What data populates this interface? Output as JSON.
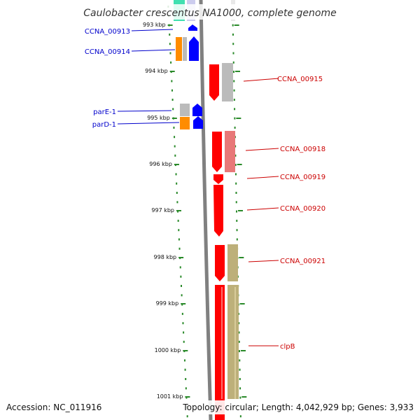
{
  "title": "Caulobacter crescentus NA1000, complete genome",
  "accession": "Accession: NC_011916",
  "summary": "Topology: circular; Length: 4,042,929 bp; Genes: 3,933",
  "colors": {
    "forward": "#ff0000",
    "forward_light": "#e87878",
    "reverse": "#0000ff",
    "gray": "#bbbbbb",
    "orange": "#ff8c00",
    "khaki": "#bdb07a",
    "teal": "#40e0b0",
    "tick": "#2a8a2a",
    "backbone": "#808080"
  },
  "ticks": [
    {
      "label": "993 kbp"
    },
    {
      "label": "994 kbp"
    },
    {
      "label": "995 kbp"
    },
    {
      "label": "996 kbp"
    },
    {
      "label": "997 kbp"
    },
    {
      "label": "998 kbp"
    },
    {
      "label": "999 kbp"
    },
    {
      "label": "1000 kbp"
    },
    {
      "label": "1001 kbp"
    }
  ],
  "left_labels": [
    {
      "label": "CCNA_00913"
    },
    {
      "label": "CCNA_00914"
    },
    {
      "label": "parE-1"
    },
    {
      "label": "parD-1"
    }
  ],
  "right_labels": [
    {
      "label": "CCNA_00915"
    },
    {
      "label": "CCNA_00918"
    },
    {
      "label": "CCNA_00919"
    },
    {
      "label": "CCNA_00920"
    },
    {
      "label": "CCNA_00921"
    },
    {
      "label": "clpB"
    }
  ]
}
